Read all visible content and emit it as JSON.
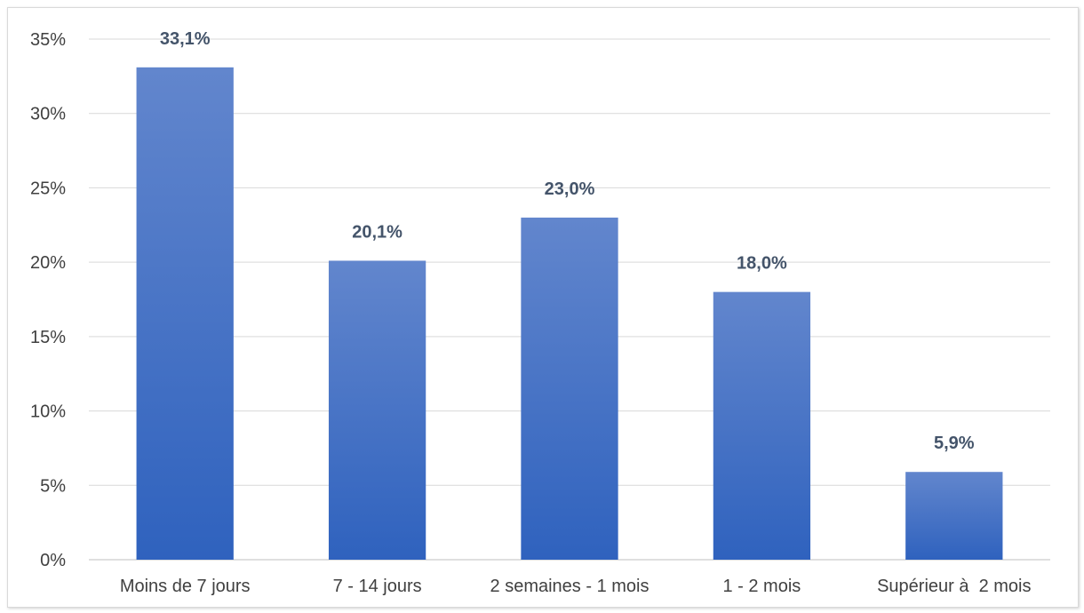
{
  "chart_data": {
    "type": "bar",
    "categories": [
      "Moins de 7 jours",
      "7 - 14 jours",
      "2 semaines - 1 mois",
      "1 - 2 mois",
      "Supérieur à  2 mois"
    ],
    "values": [
      33.1,
      20.1,
      23.0,
      18.0,
      5.9
    ],
    "data_labels": [
      "33,1%",
      "20,1%",
      "23,0%",
      "18,0%",
      "5,9%"
    ],
    "y_ticks": [
      0,
      5,
      10,
      15,
      20,
      25,
      30,
      35
    ],
    "y_tick_labels": [
      "0%",
      "5%",
      "10%",
      "15%",
      "20%",
      "25%",
      "30%",
      "35%"
    ],
    "ylim": [
      0,
      35
    ],
    "grid": true,
    "legend": "none",
    "colors": {
      "bar_top": "#6286cd",
      "bar_bottom": "#2f62be",
      "label": "#44546a",
      "grid": "#d9d9d9"
    }
  }
}
